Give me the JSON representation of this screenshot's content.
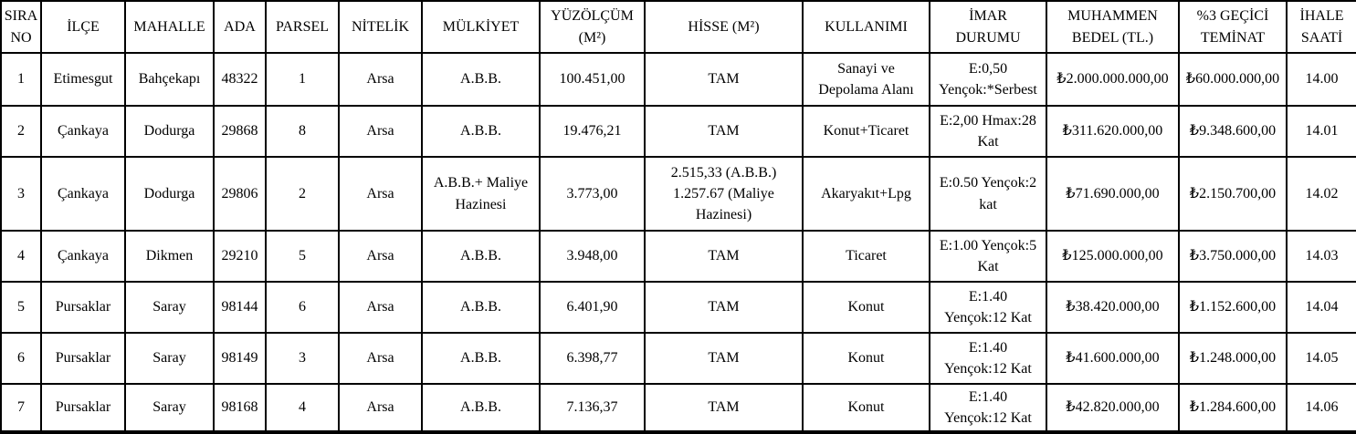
{
  "table": {
    "title": "ihale-parcel-list",
    "columns": [
      {
        "id": "sira-no",
        "label": "SIRA\nNO"
      },
      {
        "id": "ilce",
        "label": "İLÇE"
      },
      {
        "id": "mahalle",
        "label": "MAHALLE"
      },
      {
        "id": "ada",
        "label": "ADA"
      },
      {
        "id": "parsel",
        "label": "PARSEL"
      },
      {
        "id": "nitelik",
        "label": "NİTELİK"
      },
      {
        "id": "mulkiyet",
        "label": "MÜLKİYET"
      },
      {
        "id": "yuzolcum",
        "label": "YÜZÖLÇÜM\n(M²)"
      },
      {
        "id": "hisse",
        "label": "HİSSE (M²)"
      },
      {
        "id": "kullanimi",
        "label": "KULLANIMI"
      },
      {
        "id": "imar-durumu",
        "label": "İMAR\nDURUMU"
      },
      {
        "id": "muhammen-bedel",
        "label": "MUHAMMEN\nBEDEL (TL.)"
      },
      {
        "id": "gecici-teminat",
        "label": "%3 GEÇİCİ\nTEMİNAT"
      },
      {
        "id": "ihale-saati",
        "label": "İHALE\nSAATİ"
      }
    ],
    "rows": [
      {
        "cells": [
          "1",
          "Etimesgut",
          "Bahçekapı",
          "48322",
          "1",
          "Arsa",
          "A.B.B.",
          "100.451,00",
          "TAM",
          "Sanayi ve\nDepolama Alanı",
          "E:0,50\nYençok:*Serbest",
          "₺2.000.000.000,00",
          "₺60.000.000,00",
          "14.00"
        ]
      },
      {
        "cells": [
          "2",
          "Çankaya",
          "Dodurga",
          "29868",
          "8",
          "Arsa",
          "A.B.B.",
          "19.476,21",
          "TAM",
          "Konut+Ticaret",
          "E:2,00 Hmax:28\nKat",
          "₺311.620.000,00",
          "₺9.348.600,00",
          "14.01"
        ]
      },
      {
        "cells": [
          "3",
          "Çankaya",
          "Dodurga",
          "29806",
          "2",
          "Arsa",
          "A.B.B.+ Maliye\nHazinesi",
          "3.773,00",
          "2.515,33 (A.B.B.)\n1.257.67 (Maliye\nHazinesi)",
          "Akaryakıt+Lpg",
          "E:0.50 Yençok:2\nkat",
          "₺71.690.000,00",
          "₺2.150.700,00",
          "14.02"
        ]
      },
      {
        "cells": [
          "4",
          "Çankaya",
          "Dikmen",
          "29210",
          "5",
          "Arsa",
          "A.B.B.",
          "3.948,00",
          "TAM",
          "Ticaret",
          "E:1.00 Yençok:5\nKat",
          "₺125.000.000,00",
          "₺3.750.000,00",
          "14.03"
        ]
      },
      {
        "cells": [
          "5",
          "Pursaklar",
          "Saray",
          "98144",
          "6",
          "Arsa",
          "A.B.B.",
          "6.401,90",
          "TAM",
          "Konut",
          "E:1.40\nYençok:12 Kat",
          "₺38.420.000,00",
          "₺1.152.600,00",
          "14.04"
        ]
      },
      {
        "cells": [
          "6",
          "Pursaklar",
          "Saray",
          "98149",
          "3",
          "Arsa",
          "A.B.B.",
          "6.398,77",
          "TAM",
          "Konut",
          "E:1.40\nYençok:12 Kat",
          "₺41.600.000,00",
          "₺1.248.000,00",
          "14.05"
        ]
      },
      {
        "cells": [
          "7",
          "Pursaklar",
          "Saray",
          "98168",
          "4",
          "Arsa",
          "A.B.B.",
          "7.136,37",
          "TAM",
          "Konut",
          "E:1.40\nYençok:12 Kat",
          "₺42.820.000,00",
          "₺1.284.600,00",
          "14.06"
        ]
      }
    ]
  }
}
